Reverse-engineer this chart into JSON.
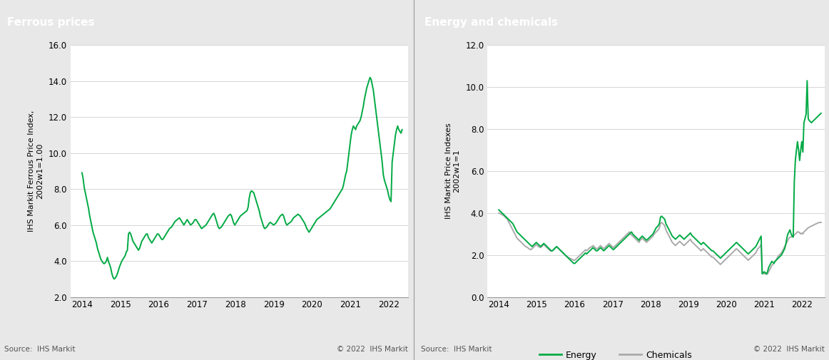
{
  "left_title": "Ferrous prices",
  "right_title": "Energy and chemicals",
  "left_ylabel": "IHS Markit Ferrous Price Index,\n2002w1=1.00",
  "right_ylabel": "IHS Markit Price Indexes\n2002w1=1",
  "left_ylim": [
    2.0,
    16.0
  ],
  "right_ylim": [
    0.0,
    12.0
  ],
  "left_yticks": [
    2.0,
    4.0,
    6.0,
    8.0,
    10.0,
    12.0,
    14.0,
    16.0
  ],
  "right_yticks": [
    0.0,
    2.0,
    4.0,
    6.0,
    8.0,
    10.0,
    12.0
  ],
  "xtick_years": [
    2014,
    2015,
    2016,
    2017,
    2018,
    2019,
    2020,
    2021,
    2022
  ],
  "source_text": "Source:  IHS Markit",
  "copyright_text": "© 2022  IHS Markit",
  "title_bg_color": "#7f7f7f",
  "title_text_color": "#ffffff",
  "outer_bg_color": "#e8e8e8",
  "panel_bg_color": "#ffffff",
  "ferrous_color": "#00aa44",
  "energy_color": "#00aa44",
  "chemicals_color": "#aaaaaa",
  "line_width": 1.4,
  "legend_energy": "Energy",
  "legend_chemicals": "Chemicals",
  "ferrous_data": [
    8.9,
    8.6,
    8.1,
    7.8,
    7.5,
    7.2,
    6.9,
    6.5,
    6.2,
    5.9,
    5.6,
    5.4,
    5.2,
    5.0,
    4.7,
    4.5,
    4.3,
    4.1,
    4.0,
    3.9,
    3.85,
    3.9,
    4.0,
    4.2,
    3.95,
    3.8,
    3.6,
    3.3,
    3.1,
    3.0,
    3.05,
    3.15,
    3.3,
    3.5,
    3.7,
    3.85,
    4.0,
    4.1,
    4.2,
    4.3,
    4.5,
    4.6,
    5.5,
    5.6,
    5.5,
    5.3,
    5.1,
    5.0,
    4.9,
    4.8,
    4.7,
    4.6,
    4.7,
    4.9,
    5.1,
    5.2,
    5.3,
    5.4,
    5.5,
    5.5,
    5.3,
    5.2,
    5.1,
    5.0,
    5.1,
    5.2,
    5.3,
    5.4,
    5.5,
    5.5,
    5.4,
    5.3,
    5.2,
    5.2,
    5.3,
    5.4,
    5.5,
    5.6,
    5.7,
    5.8,
    5.85,
    5.9,
    6.0,
    6.1,
    6.2,
    6.25,
    6.3,
    6.35,
    6.4,
    6.3,
    6.2,
    6.1,
    6.0,
    6.1,
    6.2,
    6.3,
    6.2,
    6.1,
    6.0,
    6.05,
    6.1,
    6.2,
    6.3,
    6.3,
    6.2,
    6.1,
    6.0,
    5.9,
    5.8,
    5.85,
    5.9,
    5.95,
    6.0,
    6.1,
    6.2,
    6.3,
    6.4,
    6.5,
    6.6,
    6.65,
    6.5,
    6.3,
    6.1,
    5.9,
    5.8,
    5.85,
    5.9,
    6.0,
    6.1,
    6.2,
    6.3,
    6.4,
    6.5,
    6.55,
    6.6,
    6.5,
    6.3,
    6.1,
    6.0,
    6.1,
    6.2,
    6.3,
    6.4,
    6.5,
    6.55,
    6.6,
    6.65,
    6.7,
    6.75,
    6.8,
    7.0,
    7.5,
    7.8,
    7.9,
    7.85,
    7.8,
    7.6,
    7.4,
    7.2,
    7.0,
    6.8,
    6.5,
    6.3,
    6.1,
    5.9,
    5.8,
    5.85,
    5.9,
    6.0,
    6.1,
    6.15,
    6.1,
    6.05,
    6.0,
    6.05,
    6.1,
    6.2,
    6.3,
    6.4,
    6.5,
    6.55,
    6.6,
    6.5,
    6.3,
    6.1,
    6.0,
    6.05,
    6.1,
    6.15,
    6.2,
    6.3,
    6.4,
    6.45,
    6.5,
    6.55,
    6.6,
    6.55,
    6.5,
    6.4,
    6.3,
    6.2,
    6.1,
    5.95,
    5.8,
    5.7,
    5.6,
    5.7,
    5.8,
    5.9,
    6.0,
    6.1,
    6.2,
    6.3,
    6.35,
    6.4,
    6.45,
    6.5,
    6.55,
    6.6,
    6.65,
    6.7,
    6.75,
    6.8,
    6.85,
    6.9,
    7.0,
    7.1,
    7.2,
    7.3,
    7.4,
    7.5,
    7.6,
    7.7,
    7.8,
    7.9,
    8.0,
    8.2,
    8.5,
    8.8,
    9.0,
    9.5,
    10.0,
    10.5,
    11.0,
    11.3,
    11.5,
    11.4,
    11.3,
    11.5,
    11.6,
    11.7,
    11.8,
    12.0,
    12.3,
    12.6,
    13.0,
    13.3,
    13.6,
    13.8,
    14.0,
    14.2,
    14.1,
    13.8,
    13.5,
    13.0,
    12.5,
    12.0,
    11.5,
    11.0,
    10.5,
    10.0,
    9.5,
    8.8,
    8.5,
    8.3,
    8.1,
    7.9,
    7.6,
    7.4,
    7.3,
    9.5,
    10.0,
    10.5,
    11.0,
    11.3,
    11.5,
    11.3,
    11.2,
    11.1,
    11.3
  ],
  "energy_data": [
    4.15,
    4.1,
    4.05,
    4.0,
    3.95,
    3.9,
    3.85,
    3.8,
    3.75,
    3.7,
    3.65,
    3.6,
    3.55,
    3.5,
    3.4,
    3.3,
    3.2,
    3.1,
    3.05,
    3.0,
    2.95,
    2.9,
    2.85,
    2.8,
    2.75,
    2.7,
    2.65,
    2.6,
    2.55,
    2.5,
    2.45,
    2.4,
    2.45,
    2.5,
    2.55,
    2.6,
    2.55,
    2.5,
    2.45,
    2.4,
    2.45,
    2.5,
    2.55,
    2.5,
    2.45,
    2.4,
    2.35,
    2.3,
    2.25,
    2.2,
    2.2,
    2.25,
    2.3,
    2.35,
    2.4,
    2.35,
    2.3,
    2.25,
    2.2,
    2.15,
    2.1,
    2.05,
    2.0,
    1.95,
    1.9,
    1.85,
    1.8,
    1.75,
    1.7,
    1.65,
    1.6,
    1.6,
    1.65,
    1.7,
    1.75,
    1.8,
    1.85,
    1.9,
    1.95,
    2.0,
    2.05,
    2.1,
    2.05,
    2.1,
    2.15,
    2.2,
    2.25,
    2.3,
    2.35,
    2.3,
    2.25,
    2.2,
    2.2,
    2.25,
    2.3,
    2.35,
    2.3,
    2.25,
    2.2,
    2.25,
    2.3,
    2.35,
    2.4,
    2.45,
    2.4,
    2.35,
    2.3,
    2.25,
    2.3,
    2.35,
    2.4,
    2.45,
    2.5,
    2.55,
    2.6,
    2.65,
    2.7,
    2.75,
    2.8,
    2.85,
    2.9,
    2.95,
    3.0,
    3.05,
    3.1,
    3.0,
    2.95,
    2.9,
    2.85,
    2.8,
    2.75,
    2.7,
    2.8,
    2.85,
    2.9,
    2.85,
    2.8,
    2.75,
    2.7,
    2.75,
    2.8,
    2.85,
    2.9,
    2.95,
    3.0,
    3.1,
    3.2,
    3.3,
    3.35,
    3.4,
    3.5,
    3.8,
    3.85,
    3.8,
    3.75,
    3.7,
    3.5,
    3.4,
    3.3,
    3.2,
    3.1,
    3.0,
    2.9,
    2.85,
    2.8,
    2.75,
    2.8,
    2.85,
    2.9,
    2.95,
    2.9,
    2.85,
    2.8,
    2.75,
    2.8,
    2.85,
    2.9,
    2.95,
    3.0,
    3.05,
    2.95,
    2.9,
    2.85,
    2.8,
    2.75,
    2.7,
    2.65,
    2.6,
    2.55,
    2.5,
    2.55,
    2.6,
    2.55,
    2.5,
    2.45,
    2.4,
    2.35,
    2.3,
    2.25,
    2.2,
    2.2,
    2.15,
    2.1,
    2.05,
    2.0,
    1.95,
    1.9,
    1.85,
    1.9,
    1.95,
    2.0,
    2.05,
    2.1,
    2.15,
    2.2,
    2.25,
    2.3,
    2.35,
    2.4,
    2.45,
    2.5,
    2.55,
    2.6,
    2.55,
    2.5,
    2.45,
    2.4,
    2.35,
    2.3,
    2.25,
    2.2,
    2.15,
    2.1,
    2.05,
    2.1,
    2.15,
    2.2,
    2.25,
    2.3,
    2.35,
    2.4,
    2.5,
    2.6,
    2.7,
    2.8,
    2.9,
    1.1,
    1.15,
    1.2,
    1.15,
    1.1,
    1.2,
    1.4,
    1.5,
    1.6,
    1.7,
    1.65,
    1.6,
    1.7,
    1.75,
    1.8,
    1.85,
    1.9,
    1.95,
    2.0,
    2.1,
    2.2,
    2.3,
    2.5,
    2.8,
    3.0,
    3.1,
    3.2,
    3.0,
    2.9,
    2.85,
    5.5,
    6.5,
    7.0,
    7.4,
    7.0,
    6.5,
    7.0,
    7.4,
    6.9,
    8.3,
    8.5,
    8.7,
    10.3,
    8.5,
    8.4,
    8.35,
    8.3,
    8.35,
    8.4,
    8.45,
    8.5,
    8.55,
    8.6,
    8.65,
    8.7,
    8.75
  ],
  "chemicals_data": [
    4.0,
    3.98,
    3.95,
    3.92,
    3.9,
    3.85,
    3.8,
    3.75,
    3.7,
    3.6,
    3.5,
    3.4,
    3.3,
    3.2,
    3.1,
    3.0,
    2.9,
    2.8,
    2.75,
    2.7,
    2.65,
    2.6,
    2.55,
    2.5,
    2.45,
    2.4,
    2.38,
    2.35,
    2.3,
    2.28,
    2.25,
    2.3,
    2.35,
    2.4,
    2.45,
    2.5,
    2.45,
    2.4,
    2.38,
    2.35,
    2.4,
    2.45,
    2.5,
    2.45,
    2.4,
    2.35,
    2.3,
    2.25,
    2.2,
    2.18,
    2.2,
    2.25,
    2.3,
    2.35,
    2.4,
    2.35,
    2.3,
    2.25,
    2.2,
    2.15,
    2.1,
    2.05,
    2.0,
    1.95,
    1.9,
    1.88,
    1.85,
    1.83,
    1.8,
    1.78,
    1.75,
    1.75,
    1.8,
    1.85,
    1.9,
    1.95,
    2.0,
    2.05,
    2.1,
    2.15,
    2.2,
    2.25,
    2.2,
    2.25,
    2.3,
    2.35,
    2.38,
    2.4,
    2.45,
    2.4,
    2.35,
    2.3,
    2.3,
    2.35,
    2.4,
    2.45,
    2.4,
    2.35,
    2.3,
    2.35,
    2.4,
    2.45,
    2.5,
    2.55,
    2.5,
    2.45,
    2.4,
    2.35,
    2.4,
    2.45,
    2.5,
    2.55,
    2.6,
    2.65,
    2.7,
    2.75,
    2.8,
    2.85,
    2.9,
    2.95,
    3.0,
    3.05,
    3.1,
    3.0,
    2.95,
    2.9,
    2.85,
    2.8,
    2.75,
    2.7,
    2.65,
    2.6,
    2.7,
    2.75,
    2.8,
    2.75,
    2.7,
    2.65,
    2.6,
    2.65,
    2.7,
    2.75,
    2.8,
    2.85,
    2.9,
    3.0,
    3.05,
    3.1,
    3.15,
    3.2,
    3.3,
    3.5,
    3.55,
    3.5,
    3.45,
    3.4,
    3.2,
    3.1,
    3.0,
    2.9,
    2.8,
    2.7,
    2.6,
    2.55,
    2.5,
    2.45,
    2.5,
    2.55,
    2.6,
    2.65,
    2.6,
    2.55,
    2.5,
    2.45,
    2.5,
    2.55,
    2.6,
    2.65,
    2.7,
    2.75,
    2.65,
    2.6,
    2.55,
    2.5,
    2.45,
    2.4,
    2.35,
    2.3,
    2.25,
    2.2,
    2.25,
    2.3,
    2.25,
    2.2,
    2.15,
    2.1,
    2.05,
    2.0,
    1.95,
    1.9,
    1.9,
    1.85,
    1.8,
    1.75,
    1.7,
    1.65,
    1.6,
    1.55,
    1.6,
    1.65,
    1.7,
    1.75,
    1.8,
    1.85,
    1.9,
    1.95,
    2.0,
    2.05,
    2.1,
    2.15,
    2.2,
    2.25,
    2.3,
    2.25,
    2.2,
    2.15,
    2.1,
    2.05,
    2.0,
    1.95,
    1.9,
    1.85,
    1.8,
    1.75,
    1.8,
    1.85,
    1.9,
    1.95,
    2.0,
    2.05,
    2.1,
    2.2,
    2.3,
    2.35,
    2.4,
    2.5,
    1.2,
    1.15,
    1.1,
    1.12,
    1.08,
    1.1,
    1.2,
    1.3,
    1.4,
    1.5,
    1.55,
    1.6,
    1.7,
    1.75,
    1.85,
    1.95,
    2.0,
    2.05,
    2.1,
    2.2,
    2.3,
    2.4,
    2.5,
    2.6,
    2.7,
    2.8,
    2.85,
    2.85,
    2.9,
    2.92,
    2.95,
    3.0,
    3.05,
    3.1,
    3.1,
    3.05,
    3.0,
    3.05,
    3.0,
    3.1,
    3.15,
    3.2,
    3.25,
    3.3,
    3.32,
    3.35,
    3.38,
    3.4,
    3.42,
    3.45,
    3.48,
    3.5,
    3.52,
    3.55,
    3.55,
    3.55
  ]
}
